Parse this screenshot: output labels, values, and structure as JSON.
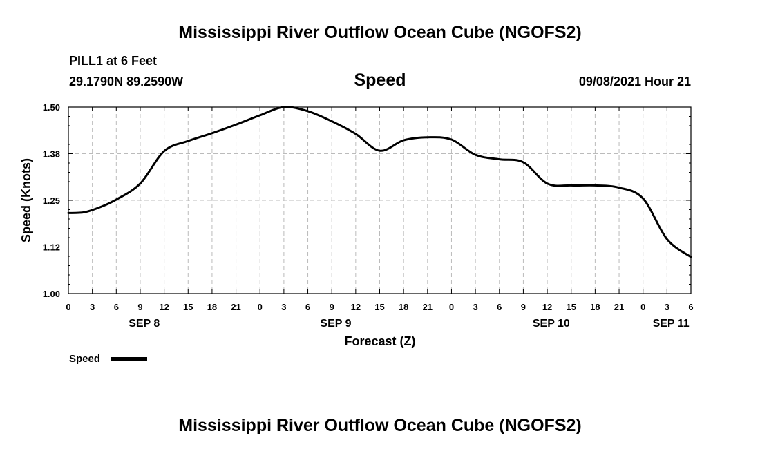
{
  "header": {
    "title_top": "Mississippi River Outflow Ocean Cube (NGOFS2)",
    "station": "PILL1 at 6 Feet",
    "coords": "29.1790N  89.2590W",
    "variable": "Speed",
    "datetime": "09/08/2021 Hour 21"
  },
  "footer": {
    "title_bottom": "Mississippi River Outflow Ocean Cube (NGOFS2)"
  },
  "legend": {
    "label": "Speed"
  },
  "chart_data": {
    "type": "line",
    "ylabel": "Speed (Knots)",
    "xlabel": "Forecast (Z)",
    "ylim": [
      1.0,
      1.5
    ],
    "xlim": [
      0,
      78
    ],
    "yticks": [
      "1.00",
      "1.12",
      "1.25",
      "1.38",
      "1.50"
    ],
    "ytick_values": [
      1.0,
      1.125,
      1.25,
      1.375,
      1.5
    ],
    "xticks": [
      "0",
      "3",
      "6",
      "9",
      "12",
      "15",
      "18",
      "21",
      "0",
      "3",
      "6",
      "9",
      "12",
      "15",
      "18",
      "21",
      "0",
      "3",
      "6",
      "9",
      "12",
      "15",
      "18",
      "21",
      "0",
      "3",
      "6"
    ],
    "day_labels": [
      {
        "label": "SEP 8",
        "hour": 9.5
      },
      {
        "label": "SEP 9",
        "hour": 33.5
      },
      {
        "label": "SEP 10",
        "hour": 60.5
      },
      {
        "label": "SEP 11",
        "hour": 75.5
      }
    ],
    "grid": true,
    "legend_position": "bottom-left",
    "series": [
      {
        "name": "Speed",
        "color": "#000000",
        "x": [
          0,
          2,
          4,
          6,
          9,
          12,
          15,
          18,
          21,
          24,
          27,
          30,
          33,
          36,
          39,
          42,
          45,
          48,
          51,
          54,
          57,
          60,
          63,
          66,
          69,
          72,
          75,
          78
        ],
        "y": [
          1.216,
          1.218,
          1.232,
          1.252,
          1.295,
          1.382,
          1.409,
          1.43,
          1.453,
          1.478,
          1.5,
          1.489,
          1.462,
          1.428,
          1.383,
          1.411,
          1.419,
          1.413,
          1.372,
          1.36,
          1.352,
          1.295,
          1.29,
          1.29,
          1.284,
          1.255,
          1.146,
          1.098
        ]
      }
    ]
  }
}
